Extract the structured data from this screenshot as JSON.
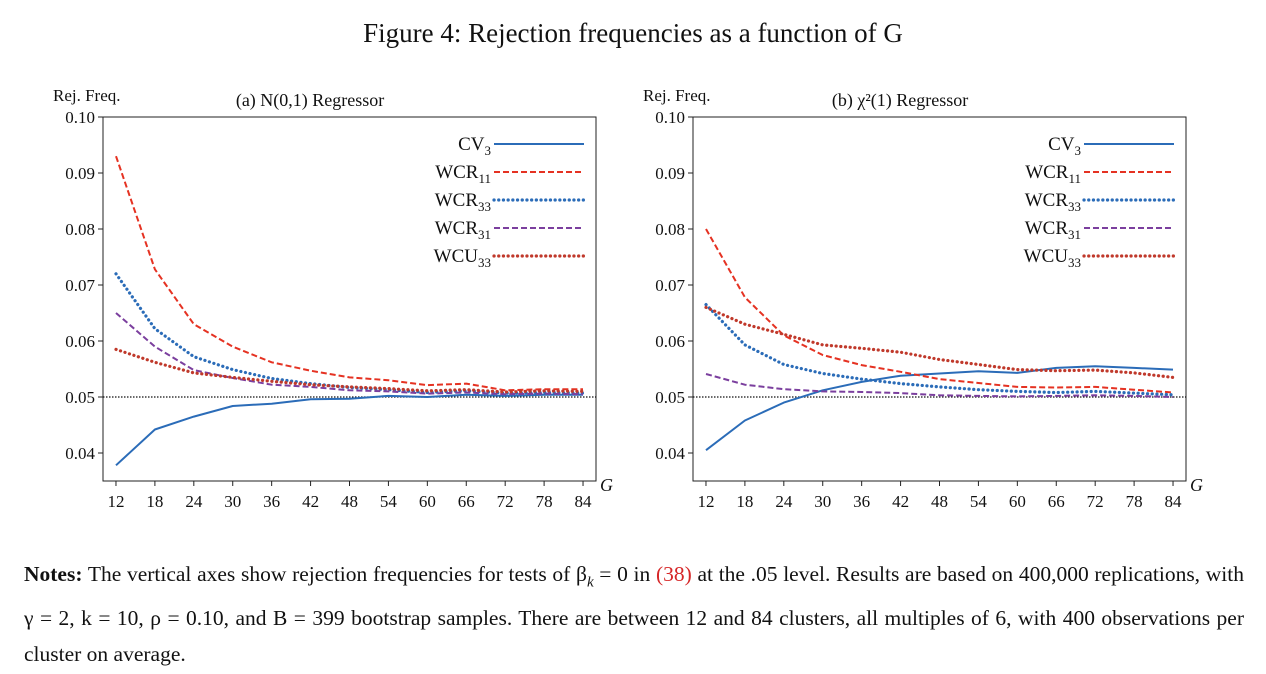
{
  "figure": {
    "title": "Figure 4: Rejection frequencies as a function of G"
  },
  "chart_data": [
    {
      "type": "line",
      "title": "(a) N(0,1) Regressor",
      "ylabel": "Rej. Freq.",
      "xlabel": "G",
      "x": [
        12,
        18,
        24,
        30,
        36,
        42,
        48,
        54,
        60,
        66,
        72,
        78,
        84
      ],
      "xticks": [
        "12",
        "18",
        "24",
        "30",
        "36",
        "42",
        "48",
        "54",
        "60",
        "66",
        "72",
        "78",
        "84"
      ],
      "yticks": [
        "0.04",
        "0.05",
        "0.06",
        "0.07",
        "0.08",
        "0.09",
        "0.10"
      ],
      "xlim": [
        10,
        86
      ],
      "ylim": [
        0.035,
        0.1
      ],
      "reference_line": 0.05,
      "legend_position": "top-right",
      "series": [
        {
          "name": "CV3",
          "label_main": "CV",
          "label_sub": "3",
          "color": "#2b6cb8",
          "dash": "solid",
          "values": [
            0.0378,
            0.0442,
            0.0465,
            0.0484,
            0.0488,
            0.0496,
            0.0497,
            0.0502,
            0.05,
            0.0504,
            0.0502,
            0.0504,
            0.0504
          ]
        },
        {
          "name": "WCR11",
          "label_main": "WCR",
          "label_sub": "11",
          "color": "#e53222",
          "dash": "dashed",
          "values": [
            0.093,
            0.0728,
            0.063,
            0.059,
            0.0562,
            0.0547,
            0.0535,
            0.053,
            0.0521,
            0.0524,
            0.0512,
            0.0514,
            0.0514
          ]
        },
        {
          "name": "WCR33",
          "label_main": "WCR",
          "label_sub": "33",
          "color": "#2b6cb8",
          "dash": "dotted",
          "values": [
            0.072,
            0.0622,
            0.0572,
            0.0549,
            0.0533,
            0.0524,
            0.0517,
            0.0513,
            0.0508,
            0.0511,
            0.0507,
            0.0508,
            0.0507
          ]
        },
        {
          "name": "WCR31",
          "label_main": "WCR",
          "label_sub": "31",
          "color": "#7b3f9e",
          "dash": "dashed",
          "values": [
            0.065,
            0.059,
            0.0548,
            0.0534,
            0.0522,
            0.0518,
            0.0512,
            0.051,
            0.0506,
            0.0508,
            0.0505,
            0.0506,
            0.0505
          ]
        },
        {
          "name": "WCU33",
          "label_main": "WCU",
          "label_sub": "33",
          "color": "#c0392b",
          "dash": "dotted",
          "values": [
            0.0585,
            0.0562,
            0.0543,
            0.0535,
            0.0528,
            0.0522,
            0.0518,
            0.0515,
            0.0511,
            0.0513,
            0.0509,
            0.0511,
            0.051
          ]
        }
      ]
    },
    {
      "type": "line",
      "title": "(b) χ²(1) Regressor",
      "ylabel": "Rej. Freq.",
      "xlabel": "G",
      "x": [
        12,
        18,
        24,
        30,
        36,
        42,
        48,
        54,
        60,
        66,
        72,
        78,
        84
      ],
      "xticks": [
        "12",
        "18",
        "24",
        "30",
        "36",
        "42",
        "48",
        "54",
        "60",
        "66",
        "72",
        "78",
        "84"
      ],
      "yticks": [
        "0.04",
        "0.05",
        "0.06",
        "0.07",
        "0.08",
        "0.09",
        "0.10"
      ],
      "xlim": [
        10,
        86
      ],
      "ylim": [
        0.035,
        0.1
      ],
      "reference_line": 0.05,
      "legend_position": "top-right",
      "series": [
        {
          "name": "CV3",
          "label_main": "CV",
          "label_sub": "3",
          "color": "#2b6cb8",
          "dash": "solid",
          "values": [
            0.0405,
            0.0458,
            0.049,
            0.0512,
            0.0527,
            0.0538,
            0.0542,
            0.0546,
            0.0543,
            0.0552,
            0.0555,
            0.0552,
            0.0549
          ]
        },
        {
          "name": "WCR11",
          "label_main": "WCR",
          "label_sub": "11",
          "color": "#e53222",
          "dash": "dashed",
          "values": [
            0.08,
            0.0678,
            0.061,
            0.0575,
            0.0557,
            0.0545,
            0.0532,
            0.0525,
            0.0518,
            0.0517,
            0.0518,
            0.0513,
            0.0508
          ]
        },
        {
          "name": "WCR33",
          "label_main": "WCR",
          "label_sub": "33",
          "color": "#2b6cb8",
          "dash": "dotted",
          "values": [
            0.0665,
            0.0593,
            0.0558,
            0.0542,
            0.0532,
            0.0524,
            0.0518,
            0.0513,
            0.051,
            0.0508,
            0.051,
            0.0507,
            0.0504
          ]
        },
        {
          "name": "WCR31",
          "label_main": "WCR",
          "label_sub": "31",
          "color": "#7b3f9e",
          "dash": "dashed",
          "values": [
            0.0541,
            0.0522,
            0.0514,
            0.051,
            0.0509,
            0.0507,
            0.0503,
            0.0502,
            0.0501,
            0.0502,
            0.0503,
            0.0502,
            0.05
          ]
        },
        {
          "name": "WCU33",
          "label_main": "WCU",
          "label_sub": "33",
          "color": "#c0392b",
          "dash": "dotted",
          "values": [
            0.066,
            0.063,
            0.0612,
            0.0593,
            0.0587,
            0.058,
            0.0567,
            0.0558,
            0.0549,
            0.0547,
            0.0548,
            0.0543,
            0.0535
          ]
        }
      ]
    }
  ],
  "notes": {
    "label": "Notes:",
    "text_1": "The vertical axes show rejection frequencies for tests of β",
    "beta_sub": "k",
    "text_2": " = 0 in ",
    "ref": "(38)",
    "text_3": " at the .05 level. Results are based on 400,000 replications, with γ = 2, k = 10, ρ = 0.10, and B = 399 bootstrap samples. There are between 12 and 84 clusters, all multiples of 6, with 400 observations per cluster on average."
  }
}
